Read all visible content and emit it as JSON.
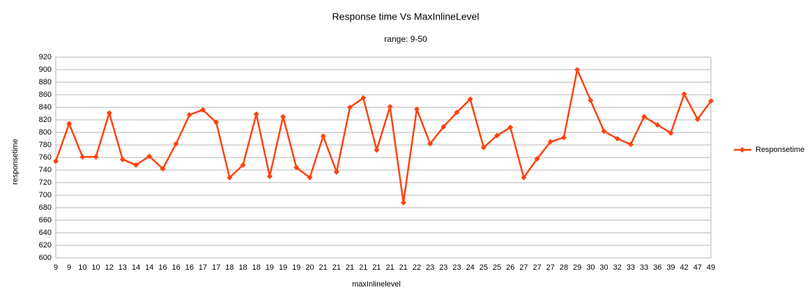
{
  "chart_data": {
    "type": "line",
    "title": "Response time Vs MaxInlineLevel",
    "subtitle": "range: 9-50",
    "x_label": "maxInlinelevel",
    "y_label": "responsetime",
    "categories": [
      "9",
      "9",
      "10",
      "10",
      "12",
      "13",
      "14",
      "14",
      "16",
      "16",
      "16",
      "17",
      "17",
      "18",
      "18",
      "18",
      "19",
      "19",
      "19",
      "20",
      "21",
      "21",
      "21",
      "21",
      "21",
      "21",
      "21",
      "22",
      "23",
      "23",
      "23",
      "24",
      "25",
      "25",
      "26",
      "27",
      "27",
      "27",
      "28",
      "29",
      "30",
      "30",
      "32",
      "33",
      "33",
      "36",
      "39",
      "42",
      "47",
      "49"
    ],
    "series": [
      {
        "name": "Responsetime",
        "color": "#ff420e",
        "values": [
          754,
          814,
          761,
          761,
          831,
          757,
          748,
          762,
          742,
          782,
          828,
          836,
          816,
          728,
          748,
          829,
          730,
          825,
          744,
          728,
          794,
          737,
          840,
          855,
          772,
          841,
          688,
          837,
          782,
          809,
          832,
          853,
          776,
          795,
          808,
          728,
          758,
          785,
          792,
          900,
          851,
          802,
          790,
          781,
          825,
          812,
          799,
          861,
          821,
          850
        ]
      }
    ],
    "ylim": [
      600,
      920
    ],
    "yticks": [
      600,
      620,
      640,
      660,
      680,
      700,
      720,
      740,
      760,
      780,
      800,
      820,
      840,
      860,
      880,
      900,
      920
    ],
    "grid": true,
    "legend": "right"
  }
}
